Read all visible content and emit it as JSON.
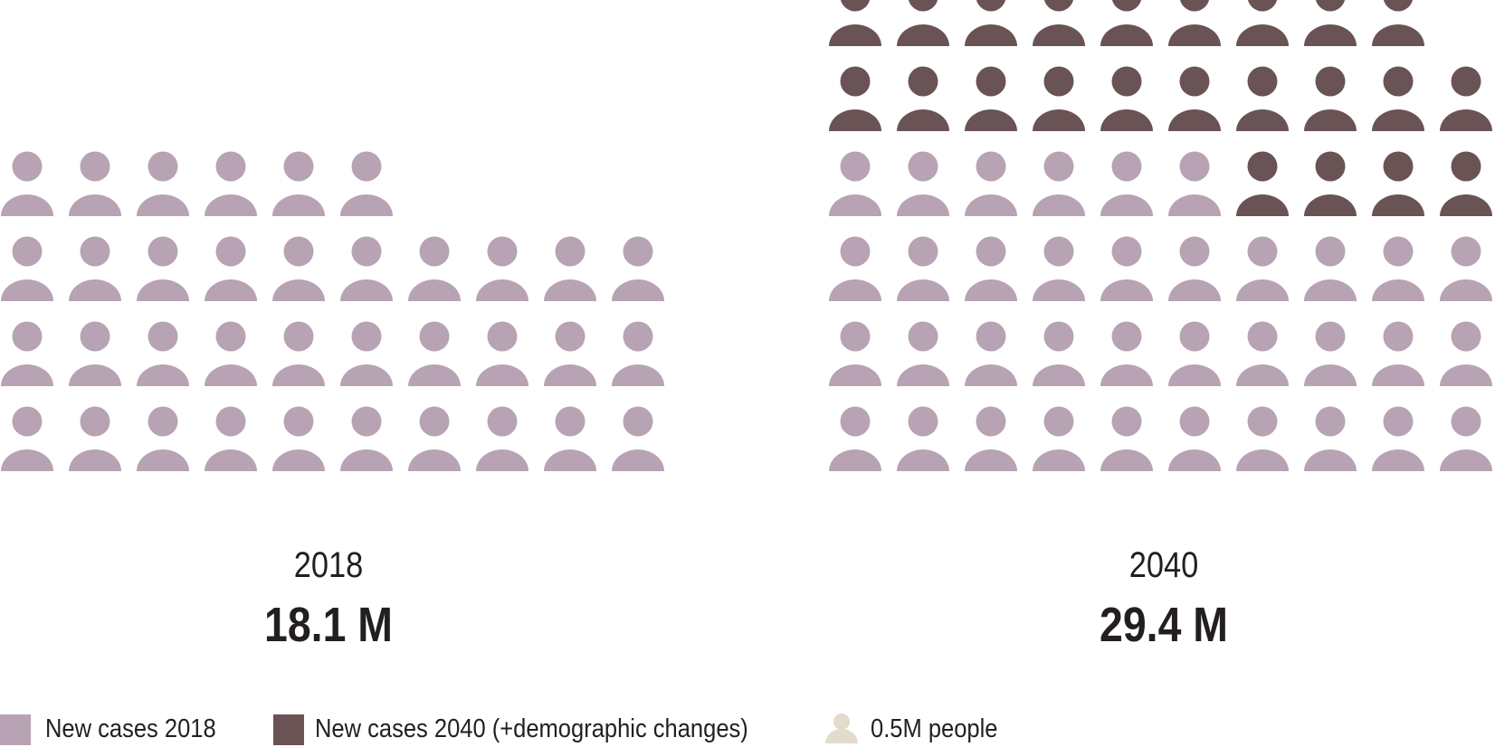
{
  "chart_data": {
    "type": "pictograph",
    "unit_label": "0.5M people",
    "unit_value_millions": 0.5,
    "panels": [
      {
        "year": "2018",
        "total_label": "18.1 M",
        "icons_per_row": 10,
        "counts": {
          "new_cases_2018": 36,
          "new_cases_2040_demographic": 0
        }
      },
      {
        "year": "2040",
        "total_label": "29.4 M",
        "icons_per_row": 10,
        "counts": {
          "new_cases_2018": 36,
          "new_cases_2040_demographic": 23
        }
      }
    ],
    "legend": [
      {
        "key": "new_cases_2018",
        "label": "New cases 2018",
        "color": "#b7a3b3"
      },
      {
        "key": "new_cases_2040_demographic",
        "label": "New cases 2040 (+demographic changes)",
        "color": "#6a5354"
      },
      {
        "key": "unit",
        "label": "0.5M people",
        "color": "#e3dccd"
      }
    ]
  }
}
